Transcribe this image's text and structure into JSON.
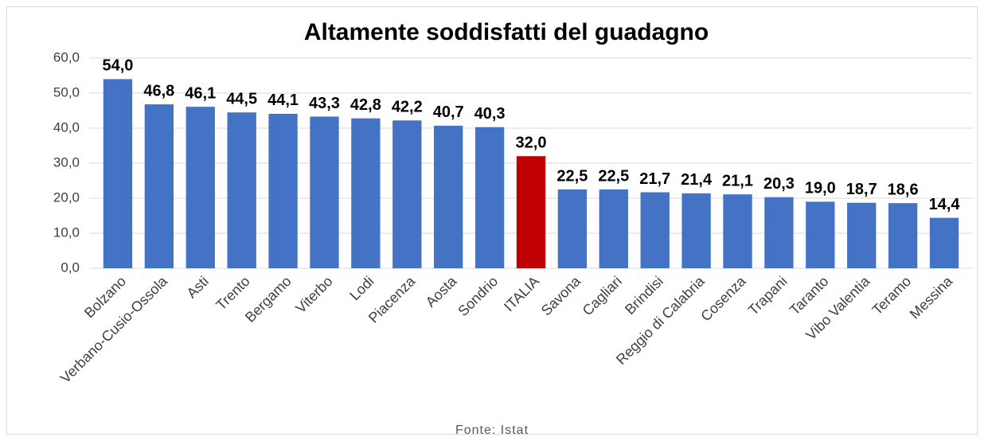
{
  "chart_data": {
    "type": "bar",
    "title": "Altamente soddisfatti del guadagno",
    "categories": [
      "Bolzano",
      "Verbano-Cusio-Ossola",
      "Asti",
      "Trento",
      "Bergamo",
      "Viterbo",
      "Lodi",
      "Piacenza",
      "Aosta",
      "Sondrio",
      "ITALIA",
      "Savona",
      "Cagliari",
      "Brindisi",
      "Reggio di Calabria",
      "Cosenza",
      "Trapani",
      "Taranto",
      "Vibo Valentia",
      "Teramo",
      "Messina"
    ],
    "values": [
      54.0,
      46.8,
      46.1,
      44.5,
      44.1,
      43.3,
      42.8,
      42.2,
      40.7,
      40.3,
      32.0,
      22.5,
      22.5,
      21.7,
      21.4,
      21.1,
      20.3,
      19.0,
      18.7,
      18.6,
      14.4
    ],
    "value_labels": [
      "54,0",
      "46,8",
      "46,1",
      "44,5",
      "44,1",
      "43,3",
      "42,8",
      "42,2",
      "40,7",
      "40,3",
      "32,0",
      "22,5",
      "22,5",
      "21,7",
      "21,4",
      "21,1",
      "20,3",
      "19,0",
      "18,7",
      "18,6",
      "14,4"
    ],
    "colors": [
      "#4472c4",
      "#4472c4",
      "#4472c4",
      "#4472c4",
      "#4472c4",
      "#4472c4",
      "#4472c4",
      "#4472c4",
      "#4472c4",
      "#4472c4",
      "#c00000",
      "#4472c4",
      "#4472c4",
      "#4472c4",
      "#4472c4",
      "#4472c4",
      "#4472c4",
      "#4472c4",
      "#4472c4",
      "#4472c4",
      "#4472c4"
    ],
    "ylim": [
      0,
      60
    ],
    "yticks": [
      {
        "value": 0,
        "label": "0,0"
      },
      {
        "value": 10,
        "label": "10,0"
      },
      {
        "value": 20,
        "label": "20,0"
      },
      {
        "value": 30,
        "label": "30,0"
      },
      {
        "value": 40,
        "label": "40,0"
      },
      {
        "value": 50,
        "label": "50,0"
      },
      {
        "value": 60,
        "label": "60,0"
      }
    ],
    "grid": true,
    "source": "Fonte: Istat"
  }
}
